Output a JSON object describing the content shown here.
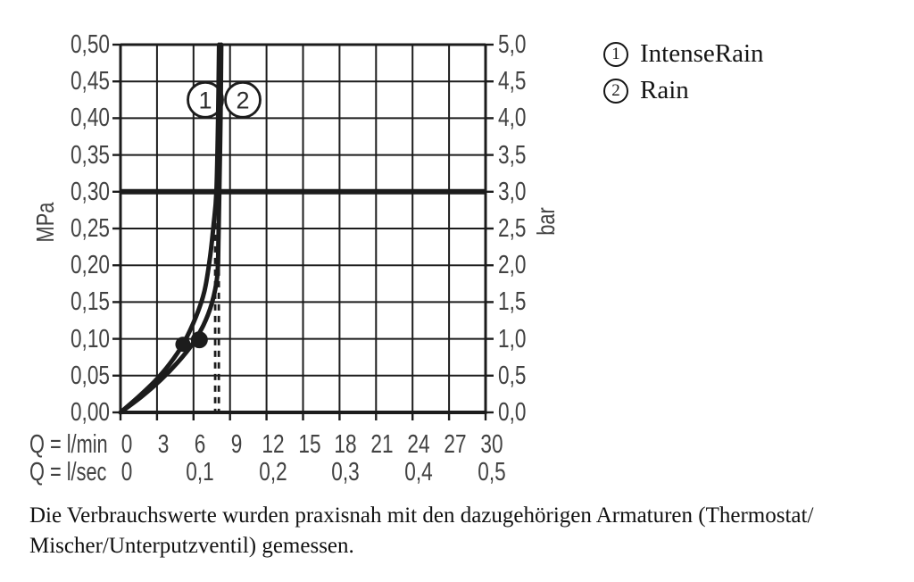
{
  "figure": {
    "background": "#ffffff",
    "line_color": "#1c1c1c",
    "text_color": "#424242"
  },
  "chart_data": {
    "type": "line",
    "title": "",
    "x_axis": {
      "label_row1": "Q = l/min",
      "label_row2": "Q = l/sec",
      "range_lmin": [
        0,
        30
      ],
      "ticks_lmin": [
        "0",
        "3",
        "6",
        "9",
        "12",
        "15",
        "18",
        "21",
        "24",
        "27",
        "30"
      ],
      "ticks_lsec": [
        {
          "at_lmin": 0,
          "label": "0"
        },
        {
          "at_lmin": 6,
          "label": "0,1"
        },
        {
          "at_lmin": 12,
          "label": "0,2"
        },
        {
          "at_lmin": 18,
          "label": "0,3"
        },
        {
          "at_lmin": 24,
          "label": "0,4"
        },
        {
          "at_lmin": 30,
          "label": "0,5"
        }
      ]
    },
    "y_axis_left": {
      "unit": "MPa",
      "range": [
        0,
        0.5
      ],
      "ticks": [
        "0,50",
        "0,45",
        "0,40",
        "0,35",
        "0,30",
        "0,25",
        "0,20",
        "0,15",
        "0,10",
        "0,05",
        "0,00"
      ]
    },
    "y_axis_right": {
      "unit": "bar",
      "range": [
        0,
        5
      ],
      "ticks": [
        "5,0",
        "4,5",
        "4,0",
        "3,5",
        "3,0",
        "2,5",
        "2,0",
        "1,5",
        "1,0",
        "0,5",
        "0,0"
      ]
    },
    "reference_line": {
      "mpa": 0.3,
      "bar": 3.0
    },
    "series": [
      {
        "name": "IntenseRain",
        "marker_number": "1",
        "points_lmin_mpa": [
          [
            0,
            0
          ],
          [
            1.4,
            0.02
          ],
          [
            2.8,
            0.042
          ],
          [
            4.0,
            0.065
          ],
          [
            5.13,
            0.0926
          ],
          [
            6.2,
            0.13
          ],
          [
            6.9,
            0.165
          ],
          [
            7.35,
            0.21
          ],
          [
            7.65,
            0.255
          ],
          [
            7.88,
            0.3
          ],
          [
            8.02,
            0.4
          ],
          [
            8.1,
            0.5
          ]
        ],
        "dot": [
          5.13,
          0.0926
        ],
        "dot_radius": 8.5
      },
      {
        "name": "Rain",
        "marker_number": "2",
        "points_lmin_mpa": [
          [
            0,
            0
          ],
          [
            1.7,
            0.021
          ],
          [
            3.3,
            0.044
          ],
          [
            4.7,
            0.068
          ],
          [
            5.9,
            0.0926
          ],
          [
            6.8,
            0.118
          ],
          [
            7.5,
            0.148
          ],
          [
            7.95,
            0.185
          ],
          [
            8.05,
            0.235
          ],
          [
            8.12,
            0.3
          ],
          [
            8.22,
            0.4
          ],
          [
            8.28,
            0.5
          ]
        ],
        "dot": [
          6.48,
          0.0987
        ],
        "dot_radius": 9.5
      }
    ],
    "dashed_markers": {
      "lmin": [
        7.78,
        8.08
      ],
      "from_mpa": 0.289,
      "to_mpa": 0
    },
    "curve_labels": [
      {
        "number": "1",
        "lmin": 6.97,
        "mpa": 0.425
      },
      {
        "number": "2",
        "lmin": 10.05,
        "mpa": 0.425
      }
    ]
  },
  "legend": {
    "items": [
      {
        "number": "1",
        "label": "IntenseRain"
      },
      {
        "number": "2",
        "label": "Rain"
      }
    ]
  },
  "caption": {
    "line1": "Die Verbrauchswerte wurden praxisnah mit den dazugehörigen Armaturen (Thermostat/",
    "line2": "Mischer/Unterputzventil) gemessen."
  }
}
